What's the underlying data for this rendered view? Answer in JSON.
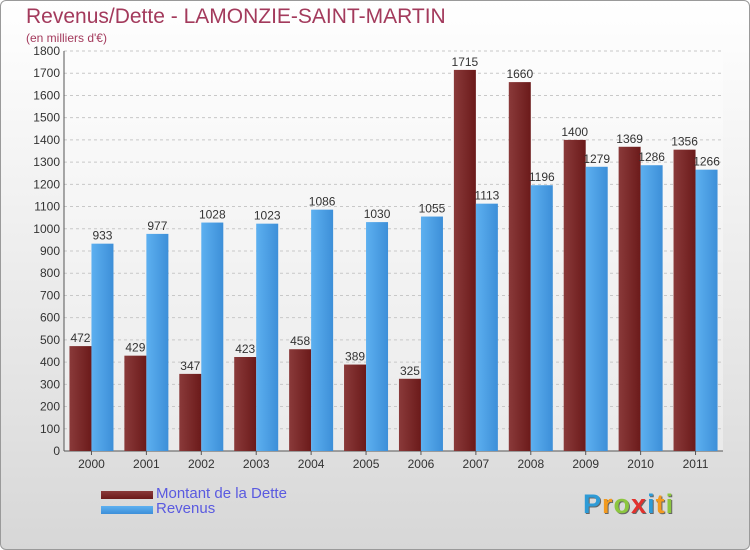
{
  "colors": {
    "dette": "#6b1a1a",
    "dette_light": "#8a3a3a",
    "revenus": "#3d8fd8",
    "revenus_light": "#5db0f0",
    "title": "#a33a5c"
  },
  "chart_data": {
    "type": "bar",
    "title": "Revenus/Dette - LAMONZIE-SAINT-MARTIN",
    "subtitle": "(en milliers d'€)",
    "categories": [
      "2000",
      "2001",
      "2002",
      "2003",
      "2004",
      "2005",
      "2006",
      "2007",
      "2008",
      "2009",
      "2010",
      "2011"
    ],
    "series": [
      {
        "name": "Montant de la Dette",
        "values": [
          472,
          429,
          347,
          423,
          458,
          389,
          325,
          1715,
          1660,
          1400,
          1369,
          1356
        ]
      },
      {
        "name": "Revenus",
        "values": [
          933,
          977,
          1028,
          1023,
          1086,
          1030,
          1055,
          1113,
          1196,
          1279,
          1286,
          1266
        ]
      }
    ],
    "ylim": [
      0,
      1800
    ],
    "yticks": [
      0,
      100,
      200,
      300,
      400,
      500,
      600,
      700,
      800,
      900,
      1000,
      1100,
      1200,
      1300,
      1400,
      1500,
      1600,
      1700,
      1800
    ],
    "grid": true,
    "legend_position": "bottom-left"
  },
  "legend": {
    "dette_label": "Montant de la Dette",
    "revenus_label": "Revenus"
  },
  "logo": {
    "letters": [
      "P",
      "r",
      "o",
      "x",
      "i",
      "t",
      "i"
    ],
    "colors": [
      "#2e9bd6",
      "#f29a1f",
      "#8cc63f",
      "#e2312d",
      "#2e9bd6",
      "#f29a1f",
      "#8cc63f"
    ]
  }
}
